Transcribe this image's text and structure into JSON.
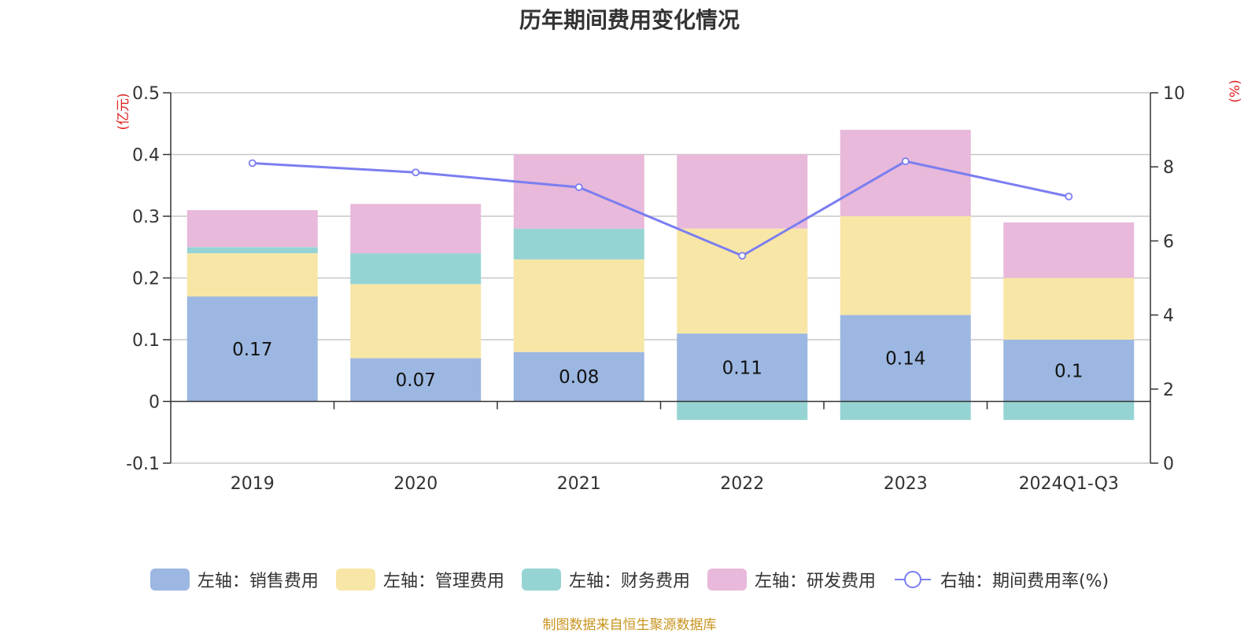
{
  "chart_data": {
    "type": "bar",
    "title": "历年期间费用变化情况",
    "categories": [
      "2019",
      "2020",
      "2021",
      "2022",
      "2023",
      "2024Q1-Q3"
    ],
    "series": [
      {
        "name": "左轴：销售费用",
        "type": "bar",
        "axis": "left",
        "color": "#9cb7e1",
        "values": [
          0.17,
          0.07,
          0.08,
          0.11,
          0.14,
          0.1
        ]
      },
      {
        "name": "左轴：管理费用",
        "type": "bar",
        "axis": "left",
        "color": "#f8e6a7",
        "values": [
          0.07,
          0.12,
          0.15,
          0.17,
          0.16,
          0.1
        ]
      },
      {
        "name": "左轴：财务费用",
        "type": "bar",
        "axis": "left",
        "color": "#96d4d4",
        "values": [
          0.01,
          0.05,
          0.05,
          -0.03,
          -0.03,
          -0.03
        ]
      },
      {
        "name": "左轴：研发费用",
        "type": "bar",
        "axis": "left",
        "color": "#e8b9da",
        "values": [
          0.06,
          0.08,
          0.12,
          0.12,
          0.14,
          0.09
        ]
      },
      {
        "name": "右轴：期间费用率(%)",
        "type": "line",
        "axis": "right",
        "color": "#7b7ef0",
        "values": [
          8.1,
          7.85,
          7.45,
          5.6,
          8.15,
          7.2
        ]
      }
    ],
    "data_labels": [
      "0.17",
      "0.07",
      "0.08",
      "0.11",
      "0.14",
      "0.1"
    ],
    "left_axis": {
      "unit_label": "(亿元)",
      "ylim": [
        -0.1,
        0.5
      ],
      "ticks": [
        0.5,
        0.4,
        0.3,
        0.2,
        0.1,
        0,
        -0.1
      ],
      "tick_labels": [
        "0.5",
        "0.4",
        "0.3",
        "0.2",
        "0.1",
        "0",
        "-0.1"
      ]
    },
    "right_axis": {
      "unit_label": "(%)",
      "ylim": [
        0,
        10
      ],
      "ticks": [
        10,
        8,
        6,
        4,
        2,
        0
      ],
      "tick_labels": [
        "10",
        "8",
        "6",
        "4",
        "2",
        "0"
      ]
    },
    "grid": true,
    "legend_position": "bottom"
  },
  "footer": {
    "source": "制图数据来自恒生聚源数据库"
  }
}
